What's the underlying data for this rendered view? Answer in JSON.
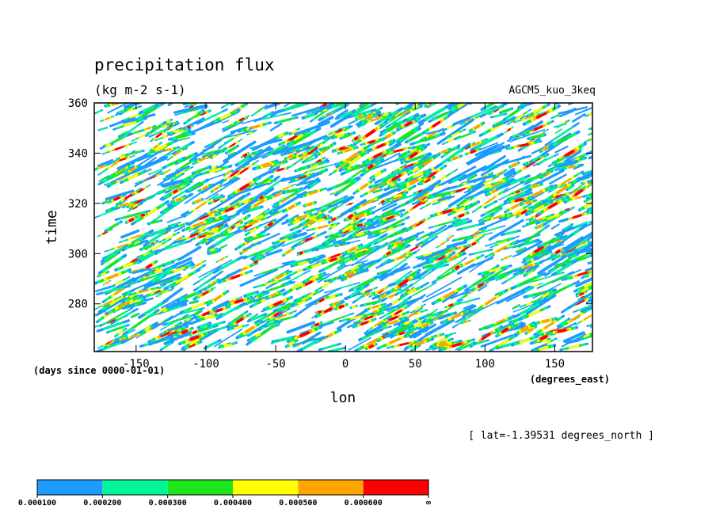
{
  "chart_data": {
    "type": "heatmap",
    "title": "precipitation flux",
    "units": "(kg m-2 s-1)",
    "source": "AGCM5_kuo_3keq",
    "xlabel": "lon",
    "ylabel": "time",
    "x_units": "(degrees_east)",
    "y_units": "(days since 0000-01-01)",
    "annotation": "[ lat=-1.39531 degrees_north ]",
    "xlim": [
      -180,
      177
    ],
    "ylim": [
      261,
      360
    ],
    "x_ticks": [
      -150,
      -100,
      -50,
      0,
      50,
      100,
      150
    ],
    "x_tick_labels": [
      "-150",
      "-100",
      "-50",
      "0",
      "50",
      "100",
      "150"
    ],
    "y_ticks": [
      280,
      300,
      320,
      340,
      360
    ],
    "y_tick_labels": [
      "280",
      "300",
      "320",
      "340",
      "360"
    ],
    "levels": [
      0.0001,
      0.0002,
      0.0003,
      0.0004,
      0.0005,
      0.0006
    ],
    "level_labels": [
      "0.000100",
      "0.000200",
      "0.000300",
      "0.000400",
      "0.000500",
      "0.000600",
      "∞"
    ],
    "level_colors": [
      "#1e9bff",
      "#00f59a",
      "#1ee61e",
      "#ffff00",
      "#ffa500",
      "#ff0000"
    ],
    "below_min_color": "#ffffff",
    "grid": false,
    "legend_position": "bottom-left",
    "field": "eastward-propagating streaks of precipitation, enhanced near lon 0 around time 315-325 and 265-275"
  }
}
